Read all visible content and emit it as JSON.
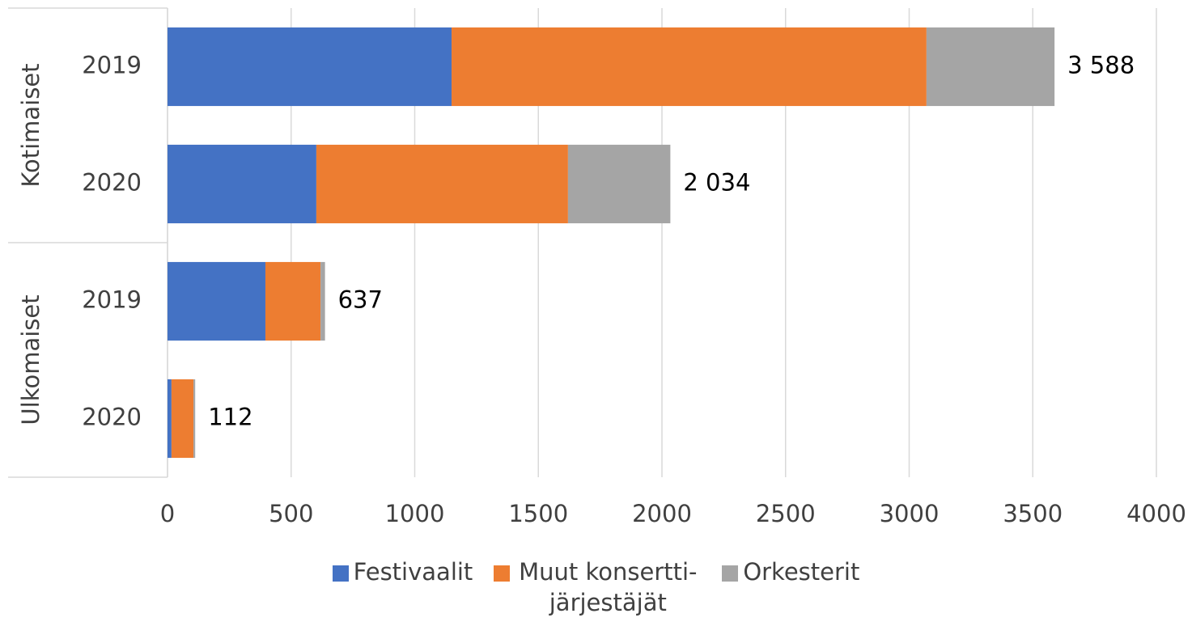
{
  "chart_data": {
    "type": "stacked-bar-horizontal",
    "groups": [
      {
        "label": "Kotimaiset",
        "categories": [
          "2019",
          "2020"
        ]
      },
      {
        "label": "Ulkomaiset",
        "categories": [
          "2019",
          "2020"
        ]
      }
    ],
    "series": [
      {
        "name": "Festivaalit",
        "color": "#4472c4",
        "values": [
          1149,
          602,
          396,
          16
        ]
      },
      {
        "name": "Muut konsertti-järjestäjät",
        "color": "#ed7d31",
        "values": [
          1921,
          1018,
          223,
          89
        ]
      },
      {
        "name": "Orkesterit",
        "color": "#a5a5a5",
        "values": [
          518,
          414,
          18,
          7
        ]
      }
    ],
    "totals": [
      3588,
      2034,
      637,
      112
    ],
    "total_labels": [
      "3 588",
      "2 034",
      "637",
      "112"
    ],
    "xlim": [
      0,
      4000
    ],
    "xticks": [
      0,
      500,
      1000,
      1500,
      2000,
      2500,
      3000,
      3500,
      4000
    ],
    "grid": true,
    "legend": "bottom"
  }
}
